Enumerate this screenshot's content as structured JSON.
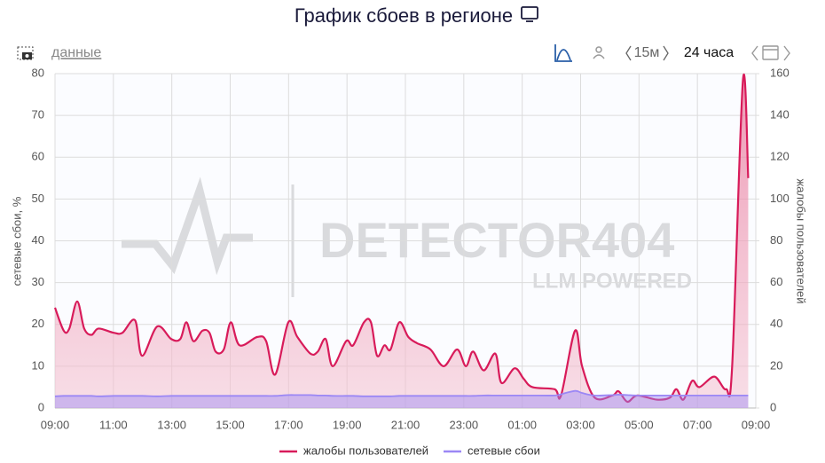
{
  "header": {
    "title": "График сбоев в регионе",
    "link": "данные",
    "interval": "15м",
    "range": "24 часа"
  },
  "watermark": {
    "brand": "DETECTOR404",
    "tagline": "LLM POWERED"
  },
  "chart_data": {
    "type": "line",
    "ylabel": "сетевые сбои, %",
    "y2label": "жалобы пользователей",
    "x": [
      0,
      0.3,
      0.49,
      0.76,
      1.0,
      1.25,
      1.49,
      2.01,
      2.31,
      2.74,
      2.98,
      3.5,
      3.98,
      4.29,
      4.5,
      4.74,
      5.05,
      5.29,
      5.5,
      5.78,
      6.02,
      6.32,
      6.93,
      7.23,
      7.54,
      7.99,
      8.3,
      8.75,
      9.0,
      9.27,
      9.51,
      9.97,
      10.21,
      10.58,
      10.82,
      11.03,
      11.28,
      11.49,
      11.79,
      12.1,
      12.4,
      12.86,
      13.31,
      13.77,
      14.07,
      14.32,
      14.68,
      15.08,
      15.29,
      15.74,
      16.05,
      16.35,
      17.11,
      17.33,
      17.81,
      18.05,
      18.48,
      19.09,
      19.3,
      19.6,
      19.94,
      20.61,
      21.06,
      21.28,
      21.52,
      21.82,
      22.07,
      22.58,
      22.98,
      23.19,
      23.56,
      23.74
    ],
    "series": [
      {
        "name": "жалобы пользователей",
        "color": "#d81b5a",
        "axis": "y2",
        "values": [
          48,
          37,
          38,
          51,
          38,
          35,
          38,
          36,
          36,
          42,
          25,
          39,
          33,
          33,
          41,
          32,
          37,
          36,
          27,
          28,
          41,
          30,
          34,
          32,
          16,
          41,
          34,
          26,
          27,
          33,
          20,
          32,
          30,
          41,
          41,
          25,
          30,
          28,
          41,
          34,
          31,
          28,
          20,
          28,
          20,
          27,
          18,
          26,
          12,
          19,
          14,
          10,
          9,
          6,
          37,
          20,
          5,
          6,
          8,
          3,
          6,
          4,
          5,
          9,
          4,
          13,
          10,
          15,
          9,
          20,
          157,
          110
        ]
      },
      {
        "name": "сетевые сбои",
        "color": "#9b87f5",
        "values": [
          2.8,
          2.9,
          2.9,
          2.9,
          2.9,
          2.9,
          2.8,
          2.9,
          2.9,
          2.9,
          2.9,
          2.8,
          2.9,
          2.9,
          2.9,
          2.9,
          2.9,
          2.9,
          2.9,
          2.9,
          2.9,
          2.9,
          2.9,
          2.9,
          2.9,
          3.1,
          3.1,
          3.1,
          3.0,
          3.0,
          2.9,
          2.9,
          2.9,
          2.8,
          2.8,
          2.8,
          2.8,
          2.8,
          2.9,
          2.9,
          2.9,
          2.9,
          2.9,
          2.9,
          2.9,
          2.9,
          3.0,
          3.0,
          3.0,
          3.0,
          3.0,
          3.0,
          3.0,
          3.3,
          4.1,
          3.6,
          3.0,
          3.1,
          3.2,
          3.1,
          3.0,
          3.0,
          3.0,
          3.0,
          3.0,
          3.0,
          3.0,
          3.0,
          3.0,
          3.0,
          3.0,
          3.0
        ]
      }
    ],
    "xlim": [
      0,
      24
    ],
    "xticks": [
      {
        "value": 0,
        "label": "09:00"
      },
      {
        "value": 2,
        "label": "11:00"
      },
      {
        "value": 4,
        "label": "13:00"
      },
      {
        "value": 6,
        "label": "15:00"
      },
      {
        "value": 8,
        "label": "17:00"
      },
      {
        "value": 10,
        "label": "19:00"
      },
      {
        "value": 12,
        "label": "21:00"
      },
      {
        "value": 14,
        "label": "23:00"
      },
      {
        "value": 16,
        "label": "01:00"
      },
      {
        "value": 18,
        "label": "03:00"
      },
      {
        "value": 20,
        "label": "05:00"
      },
      {
        "value": 22,
        "label": "07:00"
      },
      {
        "value": 24,
        "label": "09:00"
      }
    ],
    "ylim": [
      0,
      80
    ],
    "yticks": [
      0,
      10,
      20,
      30,
      40,
      50,
      60,
      70,
      80
    ],
    "y2lim": [
      0,
      160
    ],
    "y2ticks": [
      0,
      20,
      40,
      60,
      80,
      100,
      120,
      140,
      160
    ],
    "grid": true,
    "legend": "bottom"
  }
}
